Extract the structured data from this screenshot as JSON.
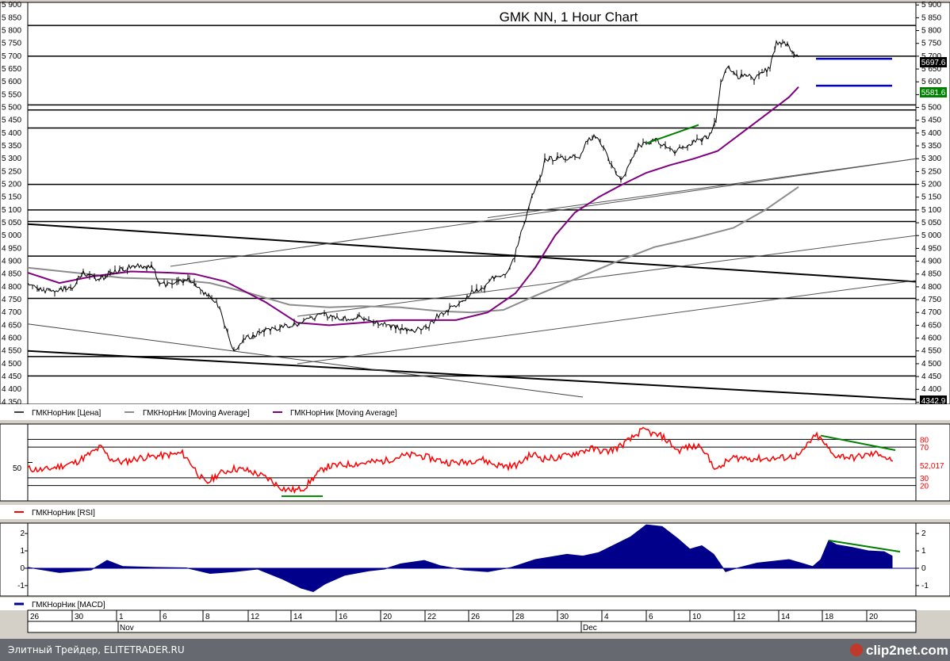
{
  "chart_data": [
    {
      "type": "candlestick",
      "title": "GMK NN, 1 Hour Chart",
      "ylim": [
        4342,
        5910
      ],
      "y_ticks": [
        "5 900",
        "5 850",
        "5 800",
        "5 750",
        "5 700",
        "5 650",
        "5 600",
        "5 550",
        "5 500",
        "5 450",
        "5 400",
        "5 350",
        "5 300",
        "5 250",
        "5 200",
        "5 150",
        "5 100",
        "5 050",
        "5 000",
        "4 950",
        "4 900",
        "4 850",
        "4 800",
        "4 750",
        "4 700",
        "4 650",
        "4 600",
        "4 550",
        "4 500",
        "4 450",
        "4 400",
        "4 350"
      ],
      "price_labels": {
        "last": "5697.6",
        "ma": "5581.6",
        "bottom": "4342.9"
      },
      "legend": [
        "ГМКНорНик [Цена]",
        "ГМКНорНик [Moving Average]",
        "ГМКНорНик [Moving Average]"
      ],
      "colors": {
        "price": "#000000",
        "ma_long": "#8c8c8c",
        "ma_short": "#800080",
        "channel": "#0000cc",
        "trend_note": "#008000"
      },
      "horizontal_levels": [
        5820,
        5700,
        5510,
        5490,
        5420,
        5200,
        5100,
        5055,
        4920,
        4755,
        4528,
        4452
      ],
      "price_path": [
        [
          0,
          4815
        ],
        [
          14,
          4795
        ],
        [
          28,
          4780
        ],
        [
          42,
          4790
        ],
        [
          56,
          4800
        ],
        [
          70,
          4855
        ],
        [
          78,
          4840
        ],
        [
          92,
          4830
        ],
        [
          104,
          4855
        ],
        [
          120,
          4870
        ],
        [
          135,
          4885
        ],
        [
          150,
          4880
        ],
        [
          158,
          4875
        ],
        [
          166,
          4820
        ],
        [
          176,
          4805
        ],
        [
          190,
          4820
        ],
        [
          204,
          4830
        ],
        [
          212,
          4810
        ],
        [
          222,
          4780
        ],
        [
          232,
          4755
        ],
        [
          242,
          4720
        ],
        [
          252,
          4620
        ],
        [
          260,
          4545
        ],
        [
          272,
          4595
        ],
        [
          286,
          4610
        ],
        [
          300,
          4635
        ],
        [
          318,
          4640
        ],
        [
          336,
          4650
        ],
        [
          356,
          4680
        ],
        [
          378,
          4690
        ],
        [
          398,
          4675
        ],
        [
          418,
          4680
        ],
        [
          436,
          4665
        ],
        [
          452,
          4655
        ],
        [
          472,
          4635
        ],
        [
          490,
          4630
        ],
        [
          506,
          4650
        ],
        [
          518,
          4690
        ],
        [
          532,
          4715
        ],
        [
          548,
          4735
        ],
        [
          560,
          4780
        ],
        [
          576,
          4795
        ],
        [
          590,
          4845
        ],
        [
          602,
          4850
        ],
        [
          614,
          4920
        ],
        [
          626,
          5050
        ],
        [
          636,
          5150
        ],
        [
          646,
          5220
        ],
        [
          652,
          5300
        ],
        [
          662,
          5300
        ],
        [
          672,
          5305
        ],
        [
          684,
          5305
        ],
        [
          696,
          5310
        ],
        [
          706,
          5370
        ],
        [
          716,
          5390
        ],
        [
          726,
          5345
        ],
        [
          736,
          5270
        ],
        [
          748,
          5220
        ],
        [
          760,
          5280
        ],
        [
          770,
          5350
        ],
        [
          780,
          5360
        ],
        [
          792,
          5370
        ],
        [
          804,
          5355
        ],
        [
          816,
          5330
        ],
        [
          826,
          5350
        ],
        [
          838,
          5360
        ],
        [
          850,
          5375
        ],
        [
          860,
          5390
        ],
        [
          868,
          5460
        ],
        [
          874,
          5600
        ],
        [
          884,
          5660
        ],
        [
          894,
          5620
        ],
        [
          906,
          5625
        ],
        [
          916,
          5615
        ],
        [
          926,
          5630
        ],
        [
          936,
          5660
        ],
        [
          944,
          5750
        ],
        [
          952,
          5760
        ],
        [
          958,
          5740
        ],
        [
          966,
          5700
        ],
        [
          972,
          5697
        ]
      ],
      "ma_short_path": [
        [
          0,
          4855
        ],
        [
          40,
          4815
        ],
        [
          80,
          4840
        ],
        [
          130,
          4860
        ],
        [
          180,
          4855
        ],
        [
          210,
          4850
        ],
        [
          250,
          4820
        ],
        [
          300,
          4740
        ],
        [
          340,
          4660
        ],
        [
          380,
          4650
        ],
        [
          420,
          4660
        ],
        [
          460,
          4670
        ],
        [
          500,
          4670
        ],
        [
          540,
          4670
        ],
        [
          580,
          4700
        ],
        [
          615,
          4775
        ],
        [
          640,
          4875
        ],
        [
          665,
          5000
        ],
        [
          690,
          5090
        ],
        [
          720,
          5150
        ],
        [
          750,
          5200
        ],
        [
          780,
          5245
        ],
        [
          810,
          5275
        ],
        [
          840,
          5300
        ],
        [
          870,
          5330
        ],
        [
          900,
          5400
        ],
        [
          930,
          5470
        ],
        [
          960,
          5540
        ],
        [
          972,
          5580
        ]
      ],
      "ma_long_path": [
        [
          0,
          4875
        ],
        [
          60,
          4855
        ],
        [
          120,
          4835
        ],
        [
          180,
          4830
        ],
        [
          230,
          4815
        ],
        [
          280,
          4775
        ],
        [
          330,
          4730
        ],
        [
          380,
          4720
        ],
        [
          420,
          4725
        ],
        [
          470,
          4720
        ],
        [
          520,
          4705
        ],
        [
          560,
          4700
        ],
        [
          600,
          4710
        ],
        [
          640,
          4765
        ],
        [
          690,
          4830
        ],
        [
          740,
          4895
        ],
        [
          790,
          4955
        ],
        [
          840,
          4990
        ],
        [
          890,
          5030
        ],
        [
          930,
          5100
        ],
        [
          972,
          5190
        ]
      ],
      "trendlines": [
        [
          [
            0,
            5045
          ],
          [
            1120,
            4820
          ]
        ],
        [
          [
            0,
            4550
          ],
          [
            1120,
            4360
          ]
        ],
        [
          [
            0,
            4655
          ],
          [
            700,
            4370
          ]
        ],
        [
          [
            340,
            4500
          ],
          [
            1120,
            4825
          ]
        ],
        [
          [
            180,
            4880
          ],
          [
            1120,
            5300
          ]
        ],
        [
          [
            340,
            4685
          ],
          [
            1120,
            5000
          ]
        ],
        [
          [
            580,
            5070
          ],
          [
            1120,
            5300
          ]
        ]
      ],
      "channel_lines": [
        [
          [
            994,
            5690
          ],
          [
            1090,
            5690
          ]
        ],
        [
          [
            994,
            5585
          ],
          [
            1090,
            5585
          ]
        ]
      ],
      "note_lines": [
        [
          [
            780,
            5360
          ],
          [
            846,
            5432
          ]
        ]
      ]
    },
    {
      "type": "line",
      "legend": "ГМКНорНик [RSI]",
      "ylim": [
        0,
        100
      ],
      "levels": [
        80,
        70,
        30,
        20
      ],
      "tick_labels": [
        "80",
        "70",
        "30",
        "20"
      ],
      "left_tick": "50",
      "last_label": "52,017",
      "colors": {
        "rsi": "#ff0000",
        "note": "#008000"
      },
      "values": [
        [
          0,
          42
        ],
        [
          20,
          40
        ],
        [
          40,
          45
        ],
        [
          60,
          50
        ],
        [
          80,
          62
        ],
        [
          92,
          70
        ],
        [
          104,
          55
        ],
        [
          120,
          50
        ],
        [
          140,
          56
        ],
        [
          160,
          58
        ],
        [
          180,
          60
        ],
        [
          195,
          62
        ],
        [
          205,
          50
        ],
        [
          215,
          35
        ],
        [
          225,
          22
        ],
        [
          240,
          35
        ],
        [
          260,
          42
        ],
        [
          275,
          40
        ],
        [
          290,
          35
        ],
        [
          305,
          28
        ],
        [
          315,
          20
        ],
        [
          325,
          15
        ],
        [
          340,
          14
        ],
        [
          350,
          18
        ],
        [
          360,
          30
        ],
        [
          375,
          44
        ],
        [
          390,
          46
        ],
        [
          410,
          48
        ],
        [
          430,
          50
        ],
        [
          450,
          52
        ],
        [
          470,
          58
        ],
        [
          490,
          60
        ],
        [
          510,
          55
        ],
        [
          530,
          50
        ],
        [
          550,
          50
        ],
        [
          570,
          55
        ],
        [
          590,
          47
        ],
        [
          610,
          45
        ],
        [
          620,
          48
        ],
        [
          630,
          58
        ],
        [
          640,
          60
        ],
        [
          650,
          55
        ],
        [
          670,
          56
        ],
        [
          690,
          62
        ],
        [
          710,
          68
        ],
        [
          730,
          64
        ],
        [
          745,
          70
        ],
        [
          760,
          80
        ],
        [
          772,
          90
        ],
        [
          780,
          92
        ],
        [
          790,
          86
        ],
        [
          800,
          84
        ],
        [
          810,
          75
        ],
        [
          820,
          65
        ],
        [
          830,
          70
        ],
        [
          840,
          70
        ],
        [
          850,
          72
        ],
        [
          860,
          52
        ],
        [
          870,
          40
        ],
        [
          880,
          50
        ],
        [
          890,
          56
        ],
        [
          900,
          56
        ],
        [
          920,
          55
        ],
        [
          940,
          55
        ],
        [
          960,
          57
        ],
        [
          975,
          60
        ],
        [
          985,
          76
        ],
        [
          995,
          85
        ],
        [
          1005,
          74
        ],
        [
          1015,
          60
        ],
        [
          1030,
          58
        ],
        [
          1040,
          56
        ],
        [
          1050,
          58
        ],
        [
          1060,
          60
        ],
        [
          1075,
          62
        ],
        [
          1085,
          54
        ],
        [
          1091,
          52
        ]
      ],
      "note_lines": [
        [
          [
            320,
            6
          ],
          [
            372,
            6
          ]
        ],
        [
          [
            1000,
            85
          ],
          [
            1094,
            66
          ]
        ]
      ]
    },
    {
      "type": "area",
      "legend": "ГМКНорНик [MACD]",
      "ylim": [
        -1.6,
        2.6
      ],
      "y_ticks": [
        "2",
        "1",
        "0",
        "-1"
      ],
      "colors": {
        "macd": "#00008b",
        "note": "#008000"
      },
      "values": [
        [
          0,
          0.05
        ],
        [
          40,
          -0.25
        ],
        [
          80,
          -0.1
        ],
        [
          100,
          0.45
        ],
        [
          120,
          0.1
        ],
        [
          160,
          0.05
        ],
        [
          200,
          0.02
        ],
        [
          230,
          -0.3
        ],
        [
          260,
          -0.2
        ],
        [
          290,
          -0.05
        ],
        [
          320,
          -0.6
        ],
        [
          345,
          -1.15
        ],
        [
          360,
          -1.35
        ],
        [
          375,
          -0.9
        ],
        [
          400,
          -0.4
        ],
        [
          430,
          -0.15
        ],
        [
          450,
          -0.05
        ],
        [
          470,
          0.25
        ],
        [
          500,
          0.45
        ],
        [
          520,
          0.15
        ],
        [
          550,
          -0.1
        ],
        [
          580,
          -0.2
        ],
        [
          610,
          0.05
        ],
        [
          640,
          0.5
        ],
        [
          680,
          0.8
        ],
        [
          700,
          0.7
        ],
        [
          720,
          0.9
        ],
        [
          760,
          1.8
        ],
        [
          780,
          2.5
        ],
        [
          800,
          2.4
        ],
        [
          820,
          1.7
        ],
        [
          835,
          1.1
        ],
        [
          850,
          1.3
        ],
        [
          865,
          0.8
        ],
        [
          880,
          -0.2
        ],
        [
          890,
          -0.05
        ],
        [
          920,
          0.3
        ],
        [
          960,
          0.5
        ],
        [
          990,
          0.1
        ],
        [
          1000,
          0.5
        ],
        [
          1010,
          1.6
        ],
        [
          1020,
          1.35
        ],
        [
          1040,
          1.2
        ],
        [
          1060,
          1.0
        ],
        [
          1080,
          0.95
        ],
        [
          1090,
          0.7
        ]
      ],
      "note_lines": [
        [
          [
            1010,
            1.6
          ],
          [
            1100,
            0.95
          ]
        ]
      ]
    }
  ],
  "time_axis": {
    "day_labels": [
      "26",
      "30",
      "1",
      "6",
      "8",
      "12",
      "14",
      "16",
      "20",
      "22",
      "26",
      "28",
      "30",
      "4",
      "6",
      "10",
      "12",
      "14",
      "18",
      "20"
    ],
    "month_labels": [
      "Nov",
      "Dec"
    ]
  },
  "footer": {
    "site_text": "Элитный Трейдер, ELITETRADER.RU",
    "logo_text": "clip2net.com"
  }
}
